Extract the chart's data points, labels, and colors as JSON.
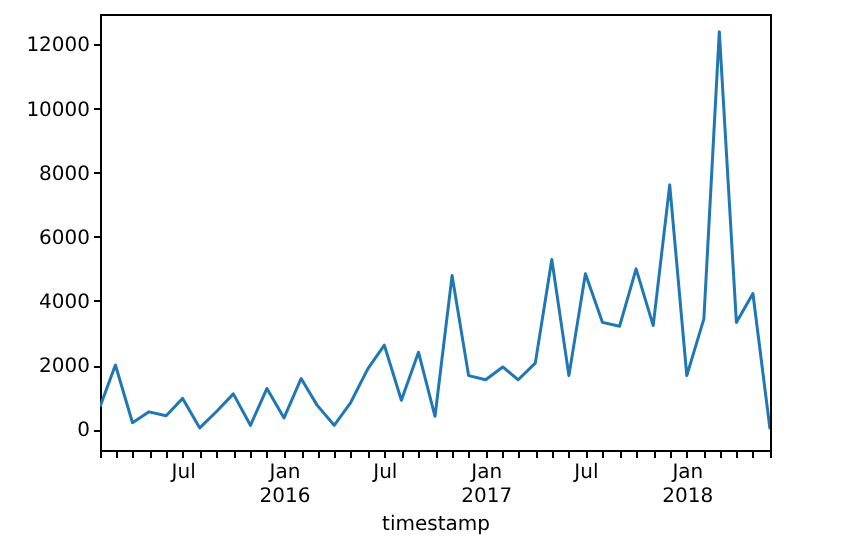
{
  "chart_data": {
    "type": "line",
    "xlabel": "timestamp",
    "x": [
      "2015-02",
      "2015-03",
      "2015-04",
      "2015-05",
      "2015-06",
      "2015-07",
      "2015-08",
      "2015-09",
      "2015-10",
      "2015-11",
      "2015-12",
      "2016-01",
      "2016-02",
      "2016-03",
      "2016-04",
      "2016-05",
      "2016-06",
      "2016-07",
      "2016-08",
      "2016-09",
      "2016-10",
      "2016-11",
      "2016-12",
      "2017-01",
      "2017-02",
      "2017-03",
      "2017-04",
      "2017-05",
      "2017-06",
      "2017-07",
      "2017-08",
      "2017-09",
      "2017-10",
      "2017-11",
      "2017-12",
      "2018-01",
      "2018-02",
      "2018-03",
      "2018-04",
      "2018-05",
      "2018-06"
    ],
    "series": [
      {
        "color": "#1f77b4",
        "values": [
          700,
          2000,
          200,
          540,
          420,
          960,
          40,
          560,
          1100,
          120,
          1270,
          350,
          1580,
          750,
          120,
          830,
          1880,
          2620,
          900,
          2400,
          400,
          4790,
          1670,
          1540,
          1940,
          1540,
          2060,
          5290,
          1670,
          4850,
          3330,
          3210,
          5000,
          3230,
          7620,
          1670,
          3440,
          12400,
          3330,
          4230,
          0
        ]
      }
    ],
    "xlim": [
      "2015-02",
      "2018-06"
    ],
    "xticks": [
      {
        "value": "2015-02",
        "label": null
      },
      {
        "value": "2015-03",
        "label": null
      },
      {
        "value": "2015-04",
        "label": null
      },
      {
        "value": "2015-05",
        "label": null
      },
      {
        "value": "2015-06",
        "label": null
      },
      {
        "value": "2015-07",
        "label": "Jul"
      },
      {
        "value": "2015-08",
        "label": null
      },
      {
        "value": "2015-09",
        "label": null
      },
      {
        "value": "2015-10",
        "label": null
      },
      {
        "value": "2015-11",
        "label": null
      },
      {
        "value": "2015-12",
        "label": null
      },
      {
        "value": "2016-01",
        "label": "Jan\n2016"
      },
      {
        "value": "2016-02",
        "label": null
      },
      {
        "value": "2016-03",
        "label": null
      },
      {
        "value": "2016-04",
        "label": null
      },
      {
        "value": "2016-05",
        "label": null
      },
      {
        "value": "2016-06",
        "label": null
      },
      {
        "value": "2016-07",
        "label": "Jul"
      },
      {
        "value": "2016-08",
        "label": null
      },
      {
        "value": "2016-09",
        "label": null
      },
      {
        "value": "2016-10",
        "label": null
      },
      {
        "value": "2016-11",
        "label": null
      },
      {
        "value": "2016-12",
        "label": null
      },
      {
        "value": "2017-01",
        "label": "Jan\n2017"
      },
      {
        "value": "2017-02",
        "label": null
      },
      {
        "value": "2017-03",
        "label": null
      },
      {
        "value": "2017-04",
        "label": null
      },
      {
        "value": "2017-05",
        "label": null
      },
      {
        "value": "2017-06",
        "label": null
      },
      {
        "value": "2017-07",
        "label": "Jul"
      },
      {
        "value": "2017-08",
        "label": null
      },
      {
        "value": "2017-09",
        "label": null
      },
      {
        "value": "2017-10",
        "label": null
      },
      {
        "value": "2017-11",
        "label": null
      },
      {
        "value": "2017-12",
        "label": null
      },
      {
        "value": "2018-01",
        "label": "Jan\n2018"
      },
      {
        "value": "2018-02",
        "label": null
      },
      {
        "value": "2018-03",
        "label": null
      },
      {
        "value": "2018-04",
        "label": null
      },
      {
        "value": "2018-05",
        "label": null
      },
      {
        "value": "2018-06",
        "label": null
      }
    ],
    "ylim": [
      -650,
      12950
    ],
    "yticks": [
      0,
      2000,
      4000,
      6000,
      8000,
      10000,
      12000
    ],
    "grid": false
  }
}
